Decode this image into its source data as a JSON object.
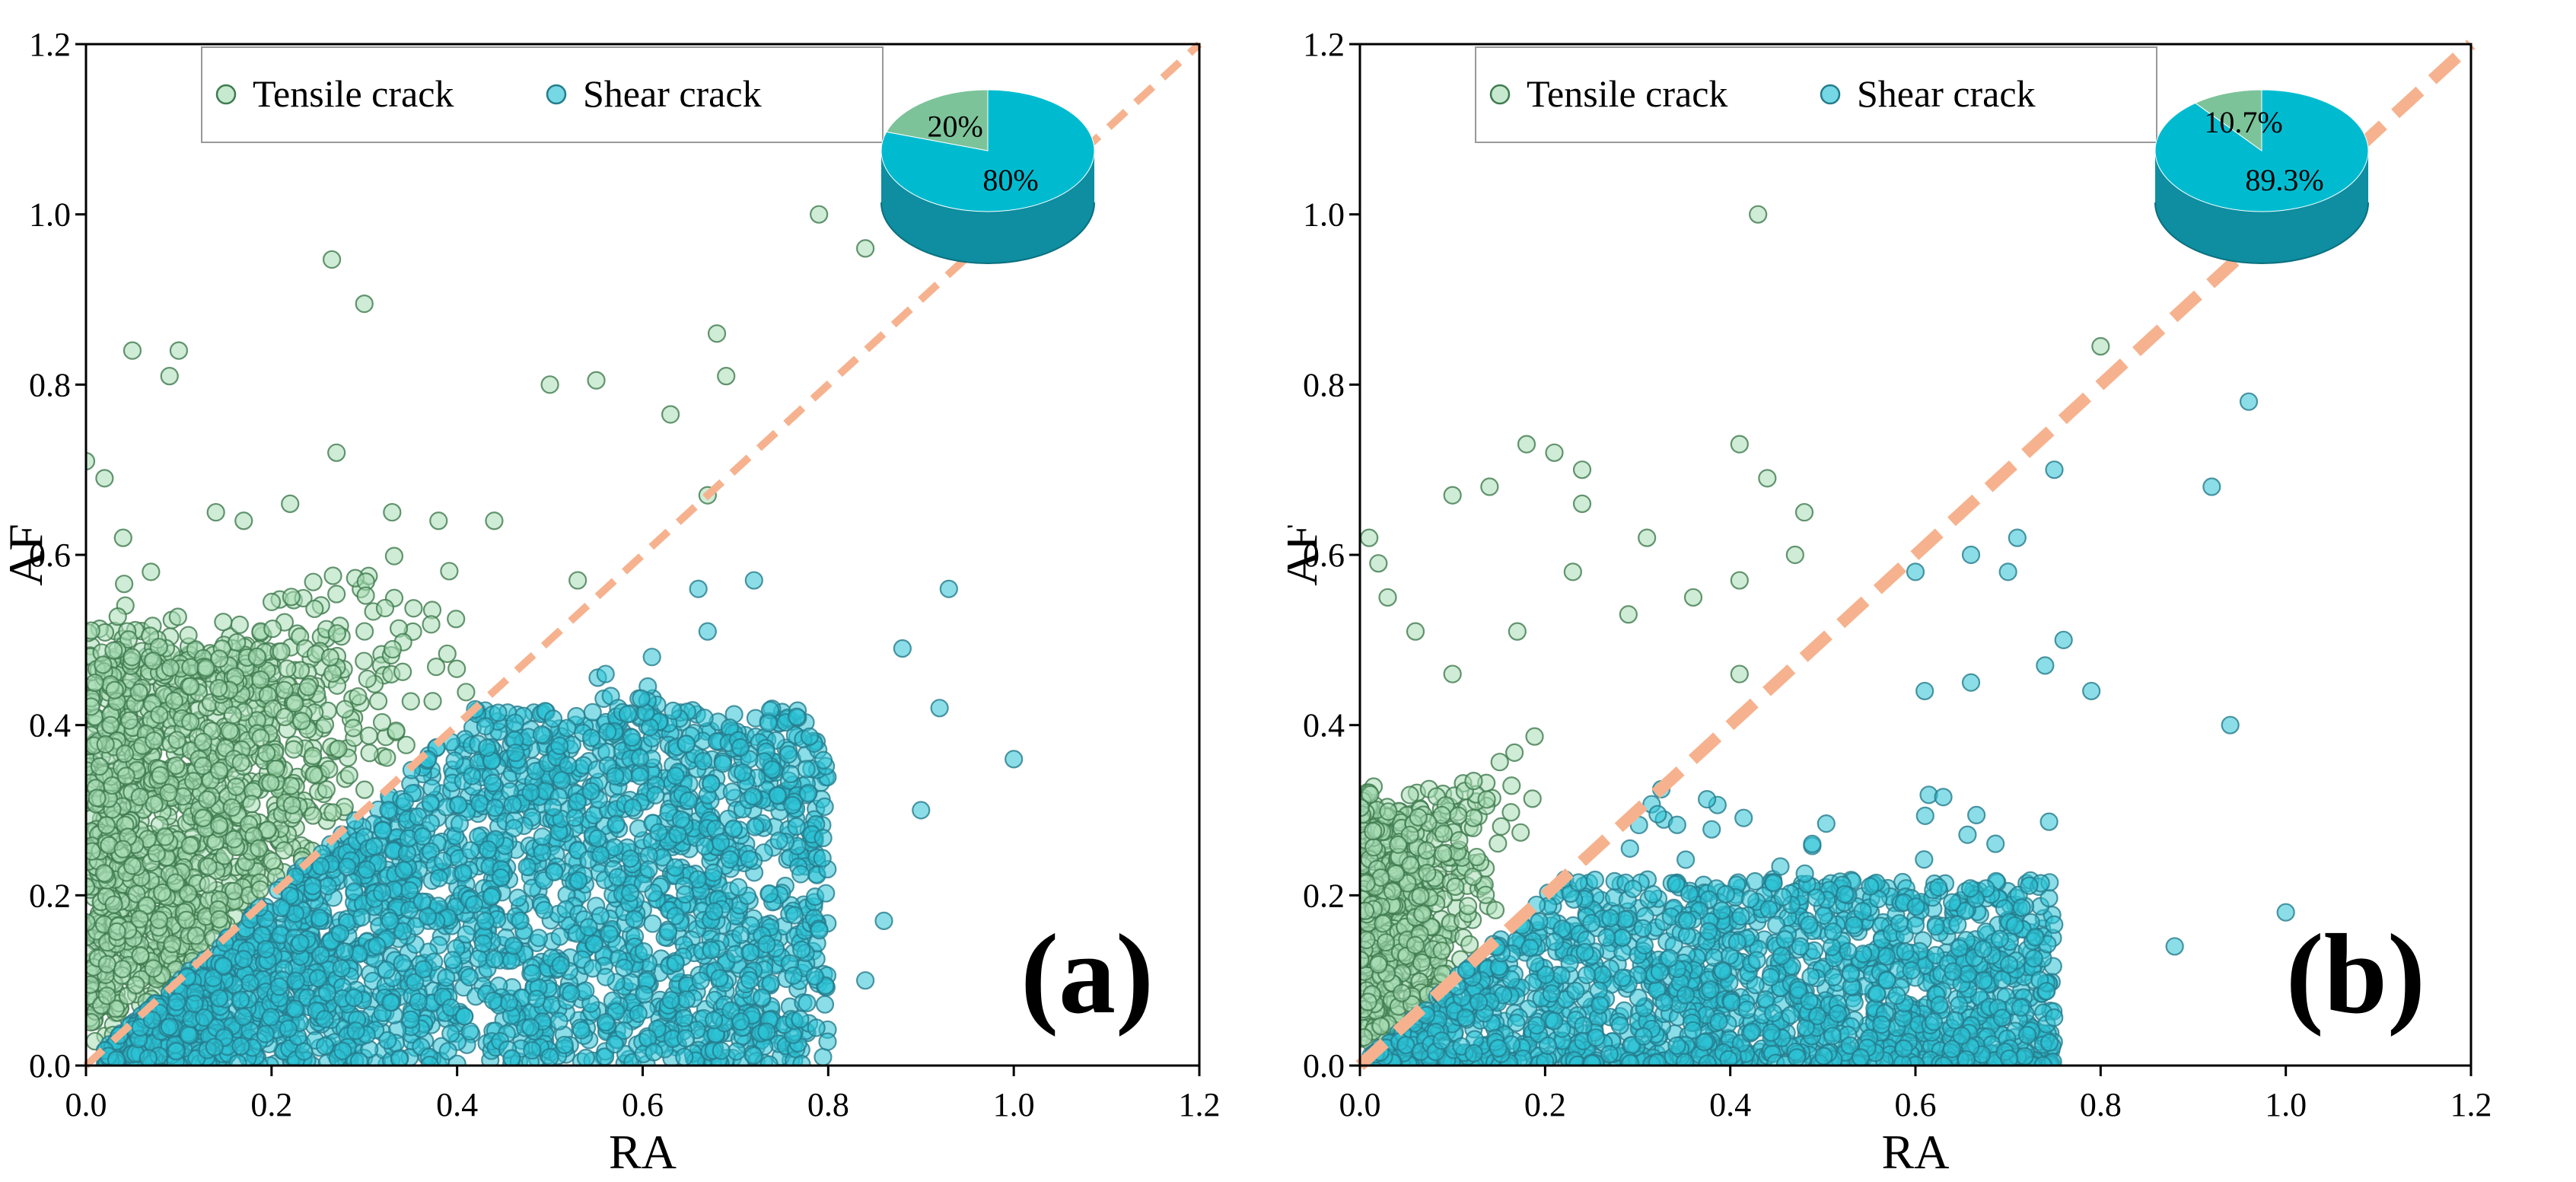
{
  "chart_data": [
    {
      "type": "scatter",
      "panel_label": "(a)",
      "xlabel": "RA",
      "ylabel": "AF",
      "xlim": [
        0,
        1.2
      ],
      "ylim": [
        0,
        1.2
      ],
      "xticks": [
        "0.0",
        "0.2",
        "0.4",
        "0.6",
        "0.8",
        "1.0",
        "1.2"
      ],
      "yticks": [
        "0.0",
        "0.2",
        "0.4",
        "0.6",
        "0.8",
        "1.0",
        "1.2"
      ],
      "divider_line": {
        "from": [
          0,
          0
        ],
        "to": [
          1.2,
          1.2
        ],
        "style": "dashed",
        "color": "#F6B28E"
      },
      "legend": {
        "position": "top-left",
        "entries": [
          "Tensile crack",
          "Shear crack"
        ]
      },
      "series": [
        {
          "name": "Tensile crack",
          "color": "#A8DDB5",
          "edge_color": "#3F7B4E",
          "notable_points": [
            [
              0.0,
              0.71
            ],
            [
              0.02,
              0.69
            ],
            [
              0.05,
              0.84
            ],
            [
              0.1,
              0.84
            ],
            [
              0.09,
              0.81
            ],
            [
              0.265,
              0.947
            ],
            [
              0.3,
              0.895
            ],
            [
              0.27,
              0.72
            ],
            [
              0.5,
              0.8
            ],
            [
              0.55,
              0.805
            ],
            [
              0.68,
              0.86
            ],
            [
              0.69,
              0.81
            ],
            [
              0.79,
              1.0
            ],
            [
              0.84,
              0.96
            ],
            [
              0.63,
              0.765
            ],
            [
              0.67,
              0.67
            ],
            [
              0.22,
              0.66
            ],
            [
              0.33,
              0.65
            ],
            [
              0.38,
              0.64
            ],
            [
              0.44,
              0.64
            ],
            [
              0.14,
              0.65
            ],
            [
              0.17,
              0.64
            ],
            [
              0.07,
              0.58
            ],
            [
              0.04,
              0.62
            ],
            [
              0.53,
              0.57
            ]
          ],
          "cluster": {
            "ra_range": [
              0,
              0.42
            ],
            "af_range": [
              0,
              0.62
            ],
            "density": "very high near RA 0-0.2, AF 0.1-0.45"
          }
        },
        {
          "name": "Shear crack",
          "color": "#2BC3D6",
          "edge_color": "#257C8C",
          "notable_points": [
            [
              1.0,
              0.36
            ],
            [
              0.93,
              0.56
            ],
            [
              0.92,
              0.42
            ],
            [
              0.88,
              0.49
            ],
            [
              0.9,
              0.3
            ],
            [
              0.86,
              0.17
            ],
            [
              0.84,
              0.1
            ],
            [
              0.72,
              0.57
            ],
            [
              0.66,
              0.56
            ],
            [
              0.67,
              0.51
            ],
            [
              0.56,
              0.46
            ],
            [
              0.61,
              0.48
            ]
          ],
          "cluster": {
            "ra_range": [
              0,
              0.85
            ],
            "af_range": [
              0,
              0.48
            ],
            "density": "dense under diagonal, RA 0.1-0.75, AF 0-0.4"
          }
        }
      ],
      "pie": {
        "slices": [
          {
            "label": "20%",
            "value": 20,
            "name": "Tensile crack",
            "color": "#7CC39A"
          },
          {
            "label": "80%",
            "value": 80,
            "name": "Shear crack",
            "color": "#00BBD0"
          }
        ]
      }
    },
    {
      "type": "scatter",
      "panel_label": "(b)",
      "xlabel": "RA",
      "ylabel": "AF",
      "xlim": [
        0,
        1.2
      ],
      "ylim": [
        0,
        1.2
      ],
      "xticks": [
        "0.0",
        "0.2",
        "0.4",
        "0.6",
        "0.8",
        "1.0",
        "1.2"
      ],
      "yticks": [
        "0.0",
        "0.2",
        "0.4",
        "0.6",
        "0.8",
        "1.0",
        "1.2"
      ],
      "divider_line": {
        "from": [
          0,
          0
        ],
        "to": [
          1.2,
          1.2
        ],
        "style": "dashed",
        "color": "#F6B28E"
      },
      "legend": {
        "position": "top-left",
        "entries": [
          "Tensile crack",
          "Shear crack"
        ]
      },
      "series": [
        {
          "name": "Tensile crack",
          "color": "#A8DDB5",
          "edge_color": "#3F7B4E",
          "notable_points": [
            [
              0.43,
              1.0
            ],
            [
              0.8,
              0.845
            ],
            [
              0.18,
              0.73
            ],
            [
              0.21,
              0.72
            ],
            [
              0.41,
              0.73
            ],
            [
              0.44,
              0.69
            ],
            [
              0.24,
              0.7
            ],
            [
              0.24,
              0.66
            ],
            [
              0.1,
              0.67
            ],
            [
              0.14,
              0.68
            ],
            [
              0.48,
              0.65
            ],
            [
              0.29,
              0.53
            ],
            [
              0.31,
              0.62
            ],
            [
              0.36,
              0.55
            ],
            [
              0.41,
              0.57
            ],
            [
              0.47,
              0.6
            ],
            [
              0.23,
              0.58
            ],
            [
              0.17,
              0.51
            ],
            [
              0.01,
              0.62
            ],
            [
              0.02,
              0.59
            ],
            [
              0.06,
              0.51
            ],
            [
              0.03,
              0.55
            ],
            [
              0.1,
              0.46
            ],
            [
              0.41,
              0.46
            ]
          ],
          "cluster": {
            "ra_range": [
              0,
              0.25
            ],
            "af_range": [
              0,
              0.45
            ],
            "density": "dense near RA 0-0.1, AF 0-0.3"
          }
        },
        {
          "name": "Shear crack",
          "color": "#2BC3D6",
          "edge_color": "#257C8C",
          "notable_points": [
            [
              0.96,
              0.78
            ],
            [
              0.92,
              0.68
            ],
            [
              0.75,
              0.7
            ],
            [
              0.66,
              0.6
            ],
            [
              0.71,
              0.62
            ],
            [
              0.7,
              0.58
            ],
            [
              0.6,
              0.58
            ],
            [
              0.94,
              0.4
            ],
            [
              1.0,
              0.18
            ],
            [
              0.76,
              0.5
            ],
            [
              0.74,
              0.47
            ],
            [
              0.79,
              0.44
            ],
            [
              0.66,
              0.45
            ],
            [
              0.61,
              0.44
            ],
            [
              0.88,
              0.14
            ]
          ],
          "cluster": {
            "ra_range": [
              0,
              0.88
            ],
            "af_range": [
              0,
              0.35
            ],
            "density": "dense band RA 0.05-0.75, AF 0-0.2"
          }
        }
      ],
      "pie": {
        "slices": [
          {
            "label": "10.7%",
            "value": 10.7,
            "name": "Tensile crack",
            "color": "#7CC39A"
          },
          {
            "label": "89.3%",
            "value": 89.3,
            "name": "Shear crack",
            "color": "#00BBD0"
          }
        ]
      }
    }
  ]
}
